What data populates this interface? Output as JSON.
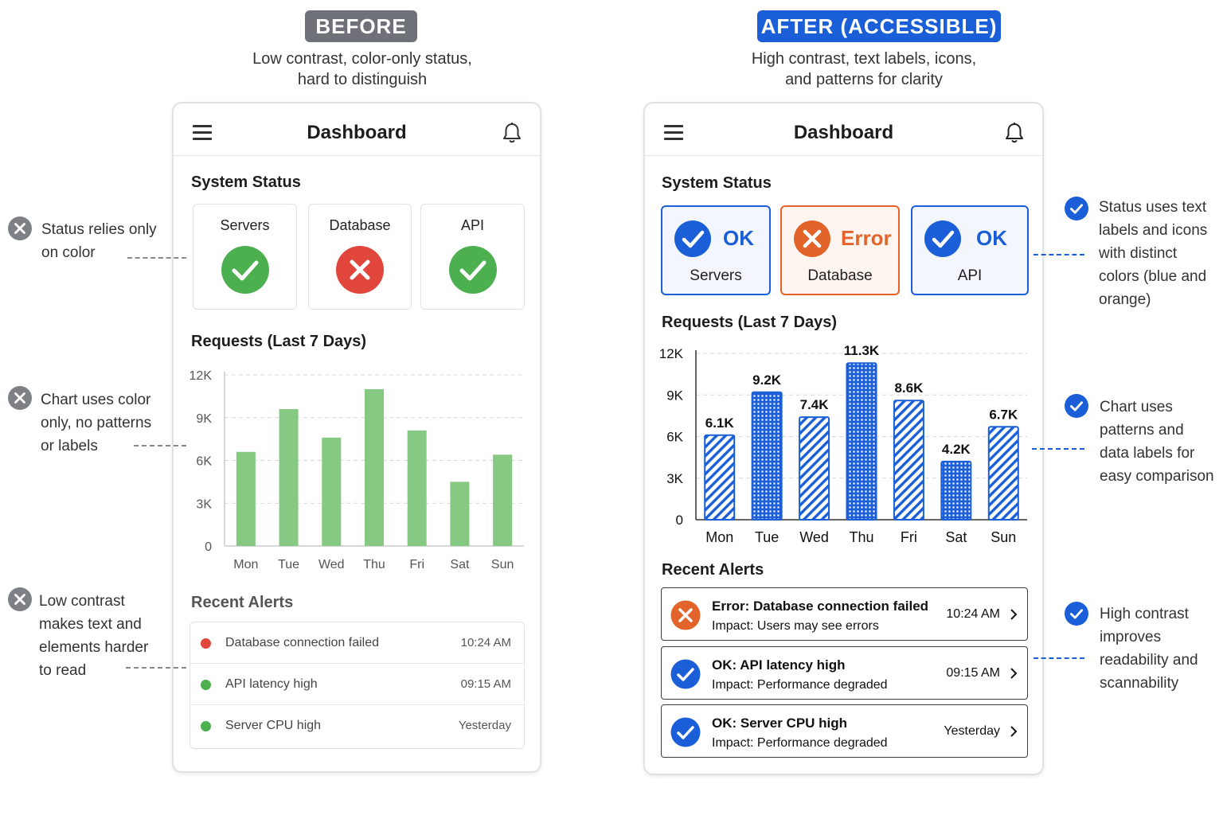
{
  "before": {
    "badge": "BEFORE",
    "subtitle_line1": "Low contrast, color-only status,",
    "subtitle_line2": "hard to distinguish",
    "header": {
      "title": "Dashboard"
    },
    "status_title": "System Status",
    "status": [
      {
        "label": "Servers",
        "state": "ok",
        "color": "#4caf50"
      },
      {
        "label": "Database",
        "state": "error",
        "color": "#e0463c"
      },
      {
        "label": "API",
        "state": "ok",
        "color": "#4caf50"
      }
    ],
    "chart_title": "Requests (Last 7 Days)",
    "alerts_title": "Recent Alerts",
    "alerts": [
      {
        "message": "Database connection failed",
        "time": "10:24 AM",
        "color": "#e0463c"
      },
      {
        "message": "API latency high",
        "time": "09:15 AM",
        "color": "#4caf50"
      },
      {
        "message": "Server CPU high",
        "time": "Yesterday",
        "color": "#4caf50"
      }
    ]
  },
  "after": {
    "badge": "AFTER (ACCESSIBLE)",
    "subtitle_line1": "High contrast, text labels, icons,",
    "subtitle_line2": "and patterns for clarity",
    "header": {
      "title": "Dashboard"
    },
    "status_title": "System Status",
    "status": [
      {
        "word": "OK",
        "label": "Servers",
        "state": "ok"
      },
      {
        "word": "Error",
        "label": "Database",
        "state": "error"
      },
      {
        "word": "OK",
        "label": "API",
        "state": "ok"
      }
    ],
    "chart_title": "Requests (Last 7 Days)",
    "alerts_title": "Recent Alerts",
    "alerts": [
      {
        "message": "Error: Database connection failed",
        "impact": "Impact: Users may see errors",
        "time": "10:24 AM",
        "state": "error"
      },
      {
        "message": "OK: API latency high",
        "impact": "Impact: Performance degraded",
        "time": "09:15 AM",
        "state": "ok"
      },
      {
        "message": "OK: Server CPU high",
        "impact": "Impact: Performance degraded",
        "time": "Yesterday",
        "state": "ok"
      }
    ]
  },
  "notes_left": [
    {
      "lines": [
        "Status relies only",
        "on color"
      ]
    },
    {
      "lines": [
        "Chart uses color",
        "only, no patterns",
        "or labels"
      ]
    },
    {
      "lines": [
        "Low contrast",
        "makes text and",
        "elements harder",
        "to read"
      ]
    }
  ],
  "notes_right": [
    {
      "lines": [
        "Status uses text",
        "labels and icons",
        "with distinct",
        "colors (blue and",
        "orange)"
      ]
    },
    {
      "lines": [
        "Chart uses",
        "patterns and",
        "data labels for",
        "easy comparison"
      ]
    },
    {
      "lines": [
        "High contrast",
        "improves",
        "readability and",
        "scannability"
      ]
    }
  ],
  "colors": {
    "accent_blue": "#1a5fd8",
    "error_orange": "#e3642a",
    "before_green": "#4caf50",
    "before_red": "#e0463c",
    "before_bar": "#86c983"
  },
  "chart_data": [
    {
      "type": "bar",
      "title": "Requests (Last 7 Days)",
      "categories": [
        "Mon",
        "Tue",
        "Wed",
        "Thu",
        "Fri",
        "Sat",
        "Sun"
      ],
      "values": [
        6.6,
        9.6,
        7.6,
        11.0,
        8.1,
        4.5,
        6.4
      ],
      "ylim": [
        0,
        12
      ],
      "yticks": [
        "0",
        "3K",
        "6K",
        "9K",
        "12K"
      ],
      "grid": true,
      "color": "#86c983"
    },
    {
      "type": "bar",
      "title": "Requests (Last 7 Days)",
      "categories": [
        "Mon",
        "Tue",
        "Wed",
        "Thu",
        "Fri",
        "Sat",
        "Sun"
      ],
      "values": [
        6.1,
        9.2,
        7.4,
        11.3,
        8.6,
        4.2,
        6.7
      ],
      "labels": [
        "6.1K",
        "9.2K",
        "7.4K",
        "11.3K",
        "8.6K",
        "4.2K",
        "6.7K"
      ],
      "patterns": [
        "hatch",
        "grid",
        "hatch",
        "grid",
        "hatch",
        "grid",
        "hatch"
      ],
      "ylim": [
        0,
        12
      ],
      "yticks": [
        "0",
        "3K",
        "6K",
        "9K",
        "12K"
      ],
      "grid": true,
      "color": "#1a5fd8"
    }
  ]
}
